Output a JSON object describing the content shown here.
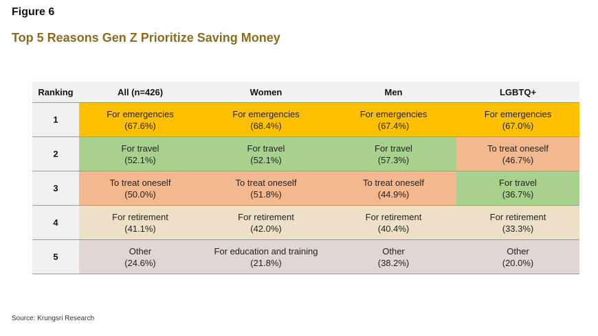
{
  "figure_label": "Figure 6",
  "title": "Top 5 Reasons Gen Z Prioritize Saving Money",
  "colors": {
    "title": "#8a6d1c",
    "For emergencies": "#ffc000",
    "For travel": "#a9d18e",
    "To treat oneself": "#f4b88f",
    "For retirement": "#ede0c6",
    "Other": "#e0d6d5",
    "For education and training": "#e0d6d5"
  },
  "table": {
    "headers": [
      "Ranking",
      "All (n=426)",
      "Women",
      "Men",
      "LGBTQ+"
    ],
    "rows": [
      {
        "rank": "1",
        "cells": [
          {
            "label": "For emergencies",
            "value": "(67.6%)"
          },
          {
            "label": "For emergencies",
            "value": "(68.4%)"
          },
          {
            "label": "For emergencies",
            "value": "(67.4%)"
          },
          {
            "label": "For emergencies",
            "value": "(67.0%)"
          }
        ]
      },
      {
        "rank": "2",
        "cells": [
          {
            "label": "For travel",
            "value": "(52.1%)"
          },
          {
            "label": "For travel",
            "value": "(52.1%)"
          },
          {
            "label": "For travel",
            "value": "(57.3%)"
          },
          {
            "label": "To treat oneself",
            "value": "(46.7%)"
          }
        ]
      },
      {
        "rank": "3",
        "cells": [
          {
            "label": "To treat oneself",
            "value": "(50.0%)"
          },
          {
            "label": "To treat oneself",
            "value": "(51.8%)"
          },
          {
            "label": "To treat oneself",
            "value": "(44.9%)"
          },
          {
            "label": "For travel",
            "value": "(36.7%)"
          }
        ]
      },
      {
        "rank": "4",
        "cells": [
          {
            "label": "For retirement",
            "value": "(41.1%)"
          },
          {
            "label": "For retirement",
            "value": "(42.0%)"
          },
          {
            "label": "For retirement",
            "value": "(40.4%)"
          },
          {
            "label": "For retirement",
            "value": "(33.3%)"
          }
        ]
      },
      {
        "rank": "5",
        "cells": [
          {
            "label": "Other",
            "value": "(24.6%)"
          },
          {
            "label": "For education and training",
            "value": "(21.8%)"
          },
          {
            "label": "Other",
            "value": "(38.2%)"
          },
          {
            "label": "Other",
            "value": "(20.0%)"
          }
        ]
      }
    ]
  },
  "source": "Source: Krungsri Research"
}
